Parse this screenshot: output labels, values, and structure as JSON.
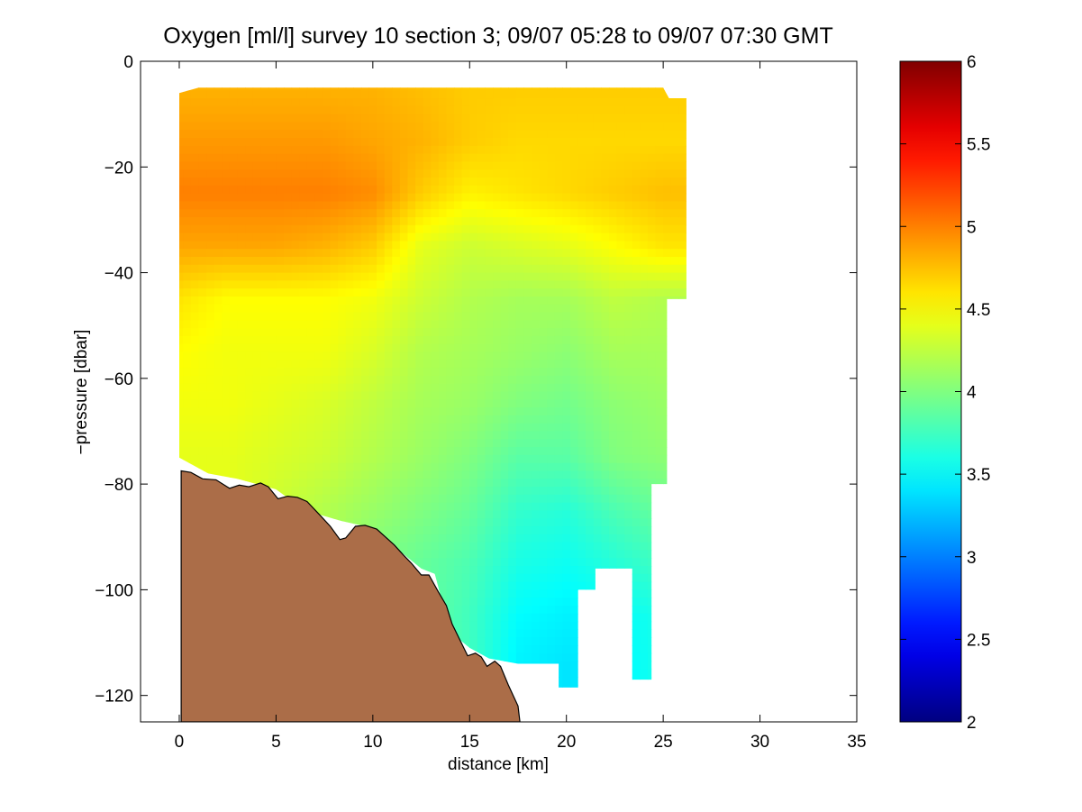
{
  "chart_data": {
    "type": "heatmap",
    "title": "Oxygen [ml/l] survey 10 section 3; 09/07 05:28 to 09/07 07:30 GMT",
    "xlabel": "distance [km]",
    "ylabel": "−pressure [dbar]",
    "xlim": [
      -2,
      35
    ],
    "ylim": [
      -125,
      0
    ],
    "xticks": [
      0,
      5,
      10,
      15,
      20,
      25,
      30,
      35
    ],
    "yticks": [
      0,
      -20,
      -40,
      -60,
      -80,
      -100,
      -120
    ],
    "xtick_labels": [
      "0",
      "5",
      "10",
      "15",
      "20",
      "25",
      "30",
      "35"
    ],
    "ytick_labels": [
      "0",
      "−20",
      "−40",
      "−60",
      "−80",
      "−100",
      "−120"
    ],
    "colorbar": {
      "range": [
        2,
        6
      ],
      "colormap": "jet",
      "ticks": [
        2,
        2.5,
        3,
        3.5,
        4,
        4.5,
        5,
        5.5,
        6
      ],
      "tick_labels": [
        "2",
        "2.5",
        "3",
        "3.5",
        "4",
        "4.5",
        "5",
        "5.5",
        "6"
      ]
    },
    "grid": false,
    "data_grid": {
      "x_km": [
        0,
        2.5,
        5,
        7.5,
        10,
        12.5,
        15,
        17.5,
        20,
        22.5,
        25
      ],
      "depth_dbar": [
        -5,
        -15,
        -25,
        -35,
        -45,
        -55,
        -65,
        -75,
        -85,
        -95,
        -105,
        -115
      ],
      "values_ml_per_l": [
        [
          4.8,
          4.8,
          4.8,
          4.8,
          4.8,
          4.75,
          4.7,
          4.7,
          4.7,
          4.7,
          4.7
        ],
        [
          4.9,
          4.9,
          4.9,
          4.9,
          4.85,
          4.8,
          4.7,
          4.65,
          4.65,
          4.65,
          4.65
        ],
        [
          5.0,
          5.0,
          5.0,
          5.0,
          4.95,
          4.7,
          4.55,
          4.6,
          4.65,
          4.7,
          4.75
        ],
        [
          4.85,
          4.85,
          4.85,
          4.8,
          4.7,
          4.4,
          4.3,
          4.35,
          4.4,
          4.5,
          4.6
        ],
        [
          4.6,
          4.5,
          4.5,
          4.5,
          4.45,
          4.3,
          4.2,
          4.15,
          4.15,
          4.25,
          4.2
        ],
        [
          4.5,
          4.45,
          4.45,
          4.45,
          4.35,
          4.2,
          4.15,
          4.1,
          4.05,
          4.15,
          4.15
        ],
        [
          4.45,
          4.45,
          4.4,
          4.35,
          4.25,
          4.15,
          4.1,
          4.0,
          3.95,
          4.05,
          4.1
        ],
        [
          4.4,
          4.4,
          4.35,
          4.3,
          4.2,
          4.1,
          4.0,
          3.85,
          3.85,
          4.0,
          4.05
        ],
        [
          null,
          null,
          4.3,
          4.2,
          4.1,
          4.0,
          3.9,
          3.7,
          3.65,
          3.8,
          3.9
        ],
        [
          null,
          null,
          null,
          null,
          4.0,
          3.9,
          3.8,
          3.6,
          3.55,
          3.65,
          3.75
        ],
        [
          null,
          null,
          null,
          null,
          null,
          null,
          3.75,
          3.5,
          3.45,
          3.5,
          3.6
        ],
        [
          null,
          null,
          null,
          null,
          null,
          null,
          null,
          3.45,
          3.4,
          3.45,
          null
        ]
      ],
      "fill_extent": [
        [
          0,
          -6
        ],
        [
          1,
          -5
        ],
        [
          25,
          -5
        ],
        [
          25.3,
          -7
        ],
        [
          26.2,
          -7
        ],
        [
          26.2,
          -45
        ],
        [
          25.2,
          -45
        ],
        [
          25.2,
          -80
        ],
        [
          24.4,
          -80
        ],
        [
          24.4,
          -117
        ],
        [
          23.4,
          -117
        ],
        [
          23.4,
          -96
        ],
        [
          21.5,
          -96
        ],
        [
          21.5,
          -100
        ],
        [
          20.6,
          -100
        ],
        [
          20.6,
          -118.5
        ],
        [
          19.6,
          -118.5
        ],
        [
          19.6,
          -114
        ],
        [
          17.5,
          -114
        ],
        [
          16,
          -113
        ],
        [
          15,
          -111
        ],
        [
          14,
          -108
        ],
        [
          13.2,
          -97
        ],
        [
          12.5,
          -96
        ],
        [
          11.5,
          -93
        ],
        [
          10.6,
          -90
        ],
        [
          9.6,
          -88
        ],
        [
          8.4,
          -87
        ],
        [
          6.5,
          -85
        ],
        [
          5,
          -81
        ],
        [
          3,
          -79
        ],
        [
          1.5,
          -78
        ],
        [
          0,
          -75
        ]
      ]
    },
    "seafloor": {
      "color": "#ab6d48",
      "profile": [
        [
          0.1,
          -77.5
        ],
        [
          0.6,
          -77.8
        ],
        [
          1.2,
          -79.0
        ],
        [
          1.9,
          -79.2
        ],
        [
          2.6,
          -80.8
        ],
        [
          3.1,
          -80.2
        ],
        [
          3.6,
          -80.5
        ],
        [
          4.2,
          -79.8
        ],
        [
          4.6,
          -80.5
        ],
        [
          5.1,
          -82.8
        ],
        [
          5.6,
          -82.3
        ],
        [
          6.1,
          -82.5
        ],
        [
          6.6,
          -83.3
        ],
        [
          7.3,
          -86.0
        ],
        [
          7.8,
          -88.0
        ],
        [
          8.3,
          -90.5
        ],
        [
          8.6,
          -90.2
        ],
        [
          9.1,
          -88.0
        ],
        [
          9.6,
          -87.8
        ],
        [
          10.2,
          -88.5
        ],
        [
          11.1,
          -91.5
        ],
        [
          11.6,
          -93.5
        ],
        [
          12.0,
          -95.0
        ],
        [
          12.5,
          -97.2
        ],
        [
          12.9,
          -97.2
        ],
        [
          13.4,
          -100.5
        ],
        [
          13.8,
          -103.0
        ],
        [
          14.1,
          -106.5
        ],
        [
          14.5,
          -109.5
        ],
        [
          14.9,
          -112.5
        ],
        [
          15.3,
          -112.0
        ],
        [
          15.6,
          -112.7
        ],
        [
          15.9,
          -114.5
        ],
        [
          16.3,
          -113.5
        ],
        [
          16.6,
          -114.5
        ],
        [
          17.0,
          -118.0
        ],
        [
          17.5,
          -122.0
        ],
        [
          17.6,
          -125
        ]
      ]
    }
  }
}
